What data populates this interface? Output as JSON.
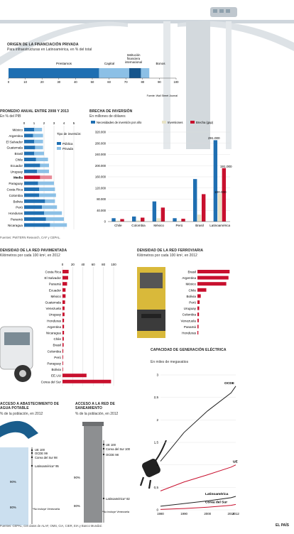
{
  "colors": {
    "blue_dark": "#1f6fb2",
    "blue_light": "#8cc0e6",
    "red": "#c8102e",
    "cream": "#e8e3c6",
    "grey": "#9a9a9a"
  },
  "origin": {
    "title": "ORIGEN DE LA FINANCIACIÓN PRIVADA",
    "subtitle": "Para infraestructuras en Latinoamérica, en % del total",
    "labels": {
      "private": "Prestamos",
      "capital": "Capital",
      "ifi": "Institución financiera internacional",
      "bonds": "Bonos"
    },
    "source": "Fuente: Wall Street Journal"
  },
  "investment_avg": {
    "title": "PROMEDIO ANUAL ENTRE 2008 Y 2013",
    "subtitle": "En % del PIB",
    "legend_title": "Tipo de inversión:",
    "legend_public": "Pública",
    "legend_private": "Privada"
  },
  "gap": {
    "title": "BRECHA DE INVERSIÓN",
    "subtitle": "En millones de dólares",
    "legend": [
      "Necesidades de inversión por año",
      "Inversiones",
      "Brecha (gap)"
    ],
    "annot_total": "291.000",
    "annot_gap": "191.000",
    "annot_inv": "100.000"
  },
  "roads": {
    "title": "DENSIDAD DE LA RED PAVIMENTADA",
    "subtitle": "Kilómetros por cada 100 km², en 2012"
  },
  "rail": {
    "title": "DENSIDAD DE LA RED FERROVIARIA",
    "subtitle": "Kilómetros por cada 100 km², en 2012"
  },
  "power": {
    "title": "CAPACIDAD DE GENERACIÓN ELÉCTRICA",
    "subtitle": "En miles de megavatios"
  },
  "water": {
    "title": "ACCESO A ABASTECIMIENTO DE AGUA POTABLE",
    "subtitle": "% de la población, en 2012",
    "labels": [
      "UE 100",
      "OCDE 99",
      "Corea del Sur 98",
      "Latinoamérica* 95"
    ],
    "ticks": [
      "90%",
      "80%"
    ],
    "note": "*No incluye Venezuela"
  },
  "sanitation": {
    "title": "ACCESO A LA RED DE SANEAMIENTO",
    "subtitle": "% de la población, en 2012",
    "labels": [
      "UE 100",
      "Corea del Sur 100",
      "OCDE 98",
      "Latinoamérica* 82"
    ],
    "ticks": [
      "90%",
      "80%"
    ],
    "note": "*No incluye Venezuela"
  },
  "footer": {
    "sources": "Fuentes: CEPAL, con datos de ALAF, OMS, CIA, CIER, EIA y Banco Mundial.",
    "brand": "EL PAÍS"
  },
  "chart_data": [
    {
      "id": "origin",
      "type": "bar",
      "stacked": true,
      "xlim": [
        0,
        100
      ],
      "xticks": [
        0,
        10,
        20,
        30,
        40,
        50,
        60,
        70,
        80,
        90,
        100
      ],
      "series": [
        {
          "name": "Prestamos",
          "values": [
            54
          ],
          "color": "#1f6fb2"
        },
        {
          "name": "Capital",
          "values": [
            18
          ],
          "color": "#8cc0e6"
        },
        {
          "name": "Institución financiera internacional",
          "values": [
            7
          ],
          "color": "#16558c"
        },
        {
          "name": "Bonos",
          "values": [
            5
          ],
          "color": "#8cc0e6"
        }
      ]
    },
    {
      "id": "investment_avg",
      "type": "bar",
      "orientation": "horizontal",
      "stacked": true,
      "xlim": [
        0,
        5
      ],
      "xticks": [
        0,
        1,
        2,
        3,
        4,
        5
      ],
      "categories": [
        "México",
        "Argentina",
        "El Salvador",
        "Guatemala",
        "Brasil",
        "Chile",
        "Ecuador",
        "Uruguay",
        "Media",
        "Paraguay",
        "Costa Rica",
        "Colombia",
        "Bolivia",
        "Perú",
        "Honduras",
        "Panamá",
        "Nicaragua"
      ],
      "series": [
        {
          "name": "Pública",
          "values": [
            1.0,
            0.9,
            1.0,
            1.1,
            1.0,
            1.2,
            1.6,
            1.3,
            1.6,
            1.4,
            1.5,
            1.5,
            2.1,
            1.8,
            2.0,
            2.2,
            2.6
          ]
        },
        {
          "name": "Privada",
          "values": [
            0.8,
            1.0,
            0.9,
            0.8,
            1.0,
            1.2,
            0.9,
            1.2,
            1.2,
            1.6,
            1.6,
            1.7,
            1.0,
            1.5,
            1.8,
            1.8,
            1.7
          ]
        }
      ]
    },
    {
      "id": "gap",
      "type": "bar",
      "categories": [
        "Chile",
        "Colombia",
        "México",
        "Perú",
        "Brasil",
        "Latinoamérica"
      ],
      "ylim": [
        0,
        320000
      ],
      "yticks": [
        0,
        40000,
        80000,
        120000,
        160000,
        200000,
        240000,
        280000,
        320000
      ],
      "series": [
        {
          "name": "Necesidades de inversión por año",
          "values": [
            12000,
            18000,
            72000,
            12000,
            152000,
            291000
          ]
        },
        {
          "name": "Inversiones",
          "values": [
            3000,
            4000,
            12000,
            2000,
            25000,
            100000
          ]
        },
        {
          "name": "Brecha (gap)",
          "values": [
            9000,
            14000,
            50000,
            10000,
            98000,
            191000
          ]
        }
      ]
    },
    {
      "id": "roads",
      "type": "bar",
      "orientation": "horizontal",
      "xlim": [
        0,
        100
      ],
      "xticks": [
        0,
        20,
        40,
        60,
        80,
        100
      ],
      "categories": [
        "Costa Rica",
        "El Salvador",
        "Panamá",
        "Ecuador",
        "México",
        "Guatemala",
        "Venezuela",
        "Uruguay",
        "Honduras",
        "Argentina",
        "Nicaragua",
        "Chile",
        "Brasil",
        "Colombia",
        "Perú",
        "Paraguay",
        "Bolivia",
        "EE.UU",
        "Corea del Sur"
      ],
      "values": [
        12,
        11,
        9,
        6,
        6,
        5,
        4,
        4,
        3,
        3,
        3,
        2.5,
        2.2,
        1.5,
        1.2,
        1.2,
        1,
        47,
        95
      ]
    },
    {
      "id": "rail",
      "type": "bar",
      "orientation": "horizontal",
      "categories": [
        "Brasil",
        "Argentina",
        "México",
        "Chile",
        "Bolivia",
        "Perú",
        "Uruguay",
        "Colombia",
        "Venezuela",
        "Panamá",
        "Honduras"
      ],
      "values": [
        29,
        28,
        26,
        8,
        3,
        2,
        1.6,
        1.4,
        1.2,
        1.0,
        0.8
      ]
    },
    {
      "id": "power",
      "type": "line",
      "x": [
        1980,
        1990,
        2000,
        2010,
        2012
      ],
      "ylim": [
        0,
        3
      ],
      "yticks": [
        0,
        0.5,
        1,
        1.5,
        2,
        2.5,
        3
      ],
      "series": [
        {
          "name": "OCDE",
          "values": [
            1.08,
            1.72,
            2.2,
            2.6,
            2.75
          ]
        },
        {
          "name": "UE",
          "values": [
            0.42,
            0.62,
            0.78,
            0.95,
            1.0
          ]
        },
        {
          "name": "Latinoamérica",
          "values": [
            0.08,
            0.14,
            0.2,
            0.27,
            0.3
          ]
        },
        {
          "name": "Corea del Sur",
          "values": [
            0.01,
            0.03,
            0.06,
            0.1,
            0.12
          ]
        }
      ]
    }
  ]
}
